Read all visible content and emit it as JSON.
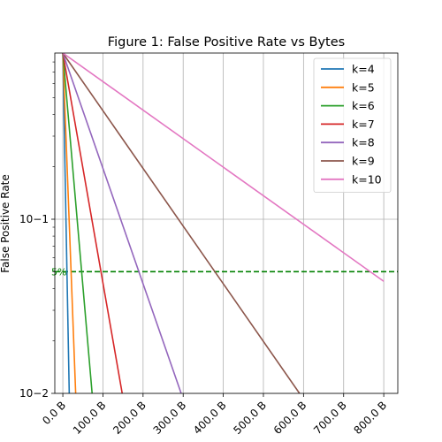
{
  "chart_data": {
    "type": "line",
    "title": "Figure 1: False Positive Rate vs Bytes",
    "xlabel": "",
    "ylabel": "False Positive Rate",
    "y_scale": "log",
    "xlim": [
      -20,
      835
    ],
    "ylim": [
      0.01,
      0.9
    ],
    "x_ticks": [
      0,
      100,
      200,
      300,
      400,
      500,
      600,
      700,
      800
    ],
    "x_tick_labels": [
      "0.0 B",
      "100.0 B",
      "200.0 B",
      "300.0 B",
      "400.0 B",
      "500.0 B",
      "600.0 B",
      "700.0 B",
      "800.0 B"
    ],
    "y_ticks": [
      0.1,
      0.01
    ],
    "y_tick_labels": [
      "10−1",
      "10−2"
    ],
    "grid": true,
    "legend_position": "top-right",
    "reference_line": {
      "y": 0.05,
      "label": "5%",
      "color": "#008000",
      "style": "dashed"
    },
    "series": [
      {
        "name": "k=4",
        "color": "#1f77b4",
        "x": [
          0,
          16
        ],
        "y": [
          0.9,
          0.01
        ]
      },
      {
        "name": "k=5",
        "color": "#ff7f0e",
        "x": [
          0,
          32
        ],
        "y": [
          0.9,
          0.01
        ]
      },
      {
        "name": "k=6",
        "color": "#2ca02c",
        "x": [
          0,
          73
        ],
        "y": [
          0.9,
          0.01
        ]
      },
      {
        "name": "k=7",
        "color": "#d62728",
        "x": [
          0,
          148
        ],
        "y": [
          0.9,
          0.01
        ]
      },
      {
        "name": "k=8",
        "color": "#9467bd",
        "x": [
          0,
          295
        ],
        "y": [
          0.9,
          0.01
        ]
      },
      {
        "name": "k=9",
        "color": "#8c564b",
        "x": [
          0,
          590
        ],
        "y": [
          0.9,
          0.01
        ]
      },
      {
        "name": "k=10",
        "color": "#e377c2",
        "x": [
          0,
          800
        ],
        "y": [
          0.9,
          0.044
        ]
      }
    ]
  }
}
